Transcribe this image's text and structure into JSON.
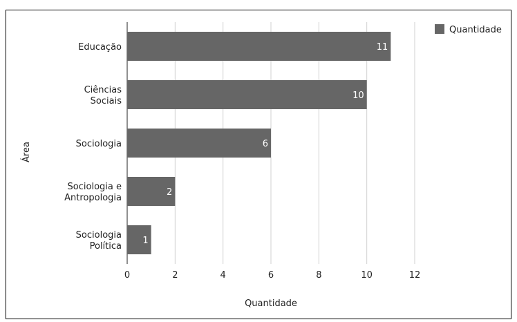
{
  "chart_data": {
    "type": "bar",
    "orientation": "horizontal",
    "title": "",
    "xlabel": "Quantidade",
    "ylabel": "Área",
    "xlim": [
      0,
      12
    ],
    "xticks": [
      "0",
      "2",
      "4",
      "6",
      "8",
      "10",
      "12"
    ],
    "grid": true,
    "legend_position": "top-right",
    "categories": [
      [
        "Educação"
      ],
      [
        "Ciências",
        "Sociais"
      ],
      [
        "Sociologia"
      ],
      [
        "Sociologia e",
        "Antropologia"
      ],
      [
        "Sociologia",
        "Política"
      ]
    ],
    "series": [
      {
        "name": "Quantidade",
        "values": [
          11,
          10,
          6,
          2,
          1
        ],
        "color": "#666666"
      }
    ]
  }
}
